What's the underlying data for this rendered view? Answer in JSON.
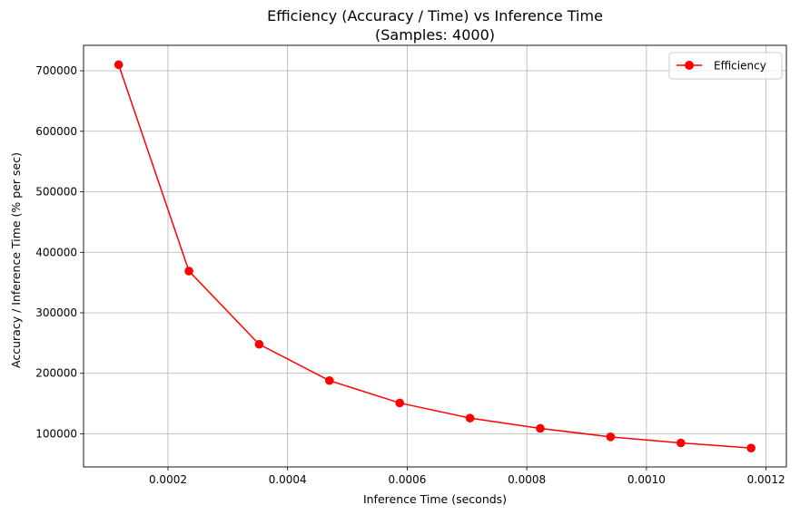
{
  "chart_data": {
    "type": "line",
    "title": "Efficiency (Accuracy / Time) vs Inference Time",
    "subtitle": "(Samples: 4000)",
    "xlabel": "Inference Time (seconds)",
    "ylabel": "Accuracy / Inference Time (% per sec)",
    "xlim": [
      5.88e-05,
      0.001234
    ],
    "ylim": [
      45300,
      742000
    ],
    "xticks": [
      0.0002,
      0.0004,
      0.0006,
      0.0008,
      0.001,
      0.0012
    ],
    "xtick_labels": [
      "0.0002",
      "0.0004",
      "0.0006",
      "0.0008",
      "0.0010",
      "0.0012"
    ],
    "yticks": [
      100000,
      200000,
      300000,
      400000,
      500000,
      600000,
      700000
    ],
    "ytick_labels": [
      "100000",
      "200000",
      "300000",
      "400000",
      "500000",
      "600000",
      "700000"
    ],
    "grid": true,
    "legend_position": "top-right",
    "series": [
      {
        "name": "Efficiency",
        "color": "#ff0000",
        "marker": "circle",
        "x": [
          0.0001175,
          0.000235,
          0.0003525,
          0.00047,
          0.0005875,
          0.000705,
          0.0008225,
          0.00094,
          0.0010575,
          0.001175
        ],
        "y": [
          710000,
          369000,
          248000,
          188000,
          151000,
          126000,
          109000,
          95000,
          85000,
          76500
        ]
      }
    ]
  }
}
